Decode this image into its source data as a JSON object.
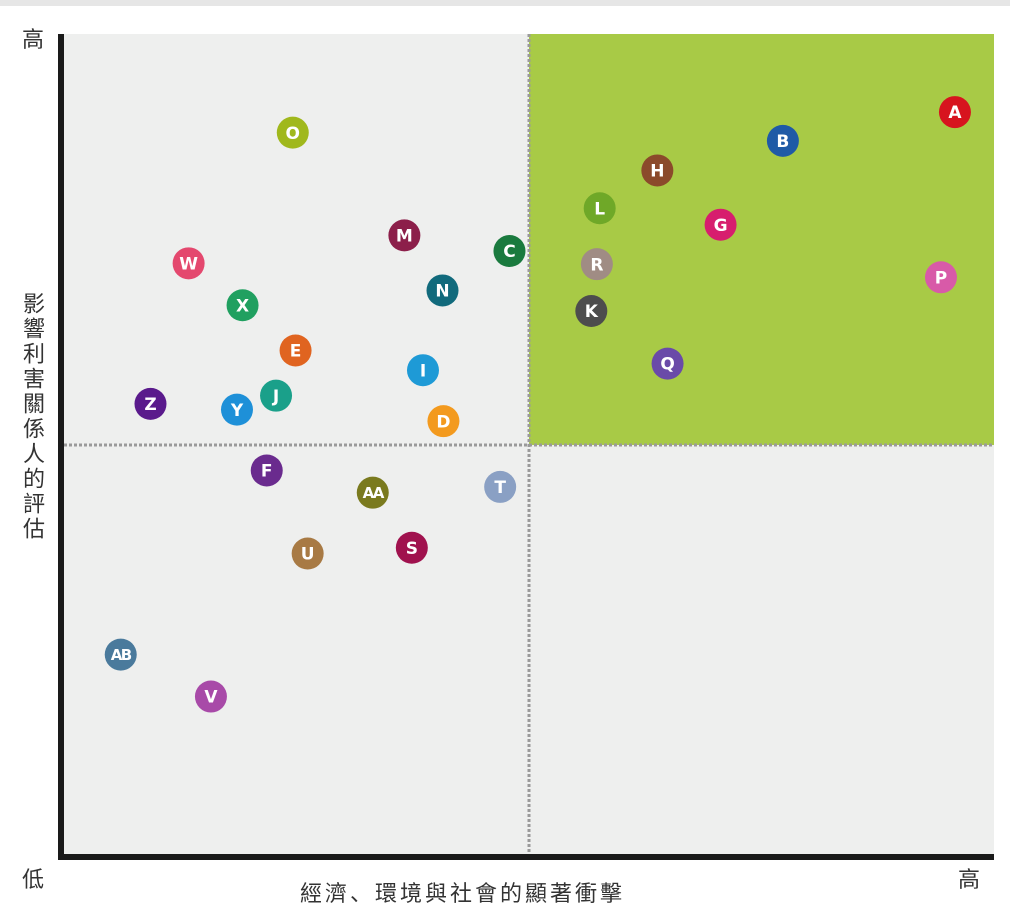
{
  "chart_data": {
    "type": "scatter",
    "title": "",
    "xlabel": "經濟、環境與社會的顯著衝擊",
    "ylabel": "影響利害關係人的評估",
    "x_low_label": "低",
    "x_high_label": "高",
    "y_low_label": "低",
    "y_high_label": "高",
    "xlim": [
      0,
      100
    ],
    "ylim": [
      0,
      100
    ],
    "threshold": {
      "x": 50,
      "y": 50
    },
    "highlight_quadrant": "top-right",
    "grid": false,
    "points": [
      {
        "label": "A",
        "x": 95.8,
        "y": 90.5,
        "color": "#d7141e"
      },
      {
        "label": "B",
        "x": 77.3,
        "y": 87.0,
        "color": "#1f5aa6"
      },
      {
        "label": "C",
        "x": 47.9,
        "y": 73.6,
        "color": "#1a7a3e"
      },
      {
        "label": "D",
        "x": 40.8,
        "y": 52.9,
        "color": "#f39a1e"
      },
      {
        "label": "E",
        "x": 24.9,
        "y": 61.5,
        "color": "#e06420"
      },
      {
        "label": "F",
        "x": 21.8,
        "y": 46.9,
        "color": "#6a2b8e"
      },
      {
        "label": "G",
        "x": 70.6,
        "y": 76.8,
        "color": "#d71e6e"
      },
      {
        "label": "H",
        "x": 63.8,
        "y": 83.4,
        "color": "#8b4a2b"
      },
      {
        "label": "I",
        "x": 38.6,
        "y": 59.1,
        "color": "#1e9ad6"
      },
      {
        "label": "J",
        "x": 22.8,
        "y": 56.0,
        "color": "#1aa08a"
      },
      {
        "label": "K",
        "x": 56.7,
        "y": 66.3,
        "color": "#4d4d4d"
      },
      {
        "label": "L",
        "x": 57.6,
        "y": 78.8,
        "color": "#6fa828"
      },
      {
        "label": "M",
        "x": 36.6,
        "y": 75.5,
        "color": "#8c1f4a"
      },
      {
        "label": "N",
        "x": 40.7,
        "y": 68.8,
        "color": "#116a7c"
      },
      {
        "label": "O",
        "x": 24.6,
        "y": 88.0,
        "color": "#a0b81c"
      },
      {
        "label": "P",
        "x": 94.3,
        "y": 70.4,
        "color": "#d85aa8"
      },
      {
        "label": "Q",
        "x": 64.9,
        "y": 59.9,
        "color": "#6a4aa8"
      },
      {
        "label": "R",
        "x": 57.3,
        "y": 72.0,
        "color": "#a08c84"
      },
      {
        "label": "S",
        "x": 37.4,
        "y": 37.5,
        "color": "#a0124e"
      },
      {
        "label": "T",
        "x": 46.9,
        "y": 44.9,
        "color": "#8aa0c4"
      },
      {
        "label": "U",
        "x": 26.2,
        "y": 36.8,
        "color": "#a87a44"
      },
      {
        "label": "V",
        "x": 15.8,
        "y": 19.4,
        "color": "#a84aa8"
      },
      {
        "label": "W",
        "x": 13.4,
        "y": 72.1,
        "color": "#e4486e"
      },
      {
        "label": "X",
        "x": 19.2,
        "y": 67.0,
        "color": "#20a060"
      },
      {
        "label": "Y",
        "x": 18.6,
        "y": 54.3,
        "color": "#1e90d8"
      },
      {
        "label": "Z",
        "x": 9.3,
        "y": 55.0,
        "color": "#5a1a8c"
      },
      {
        "label": "AA",
        "x": 33.2,
        "y": 44.2,
        "color": "#7a7a1e"
      },
      {
        "label": "AB",
        "x": 6.1,
        "y": 24.5,
        "color": "#4a7a9c"
      }
    ]
  },
  "colors": {
    "background": "#eeefee",
    "highlight": "#a8ca46",
    "axis": "#1a1a1a",
    "divider": "#9a9a9a"
  }
}
